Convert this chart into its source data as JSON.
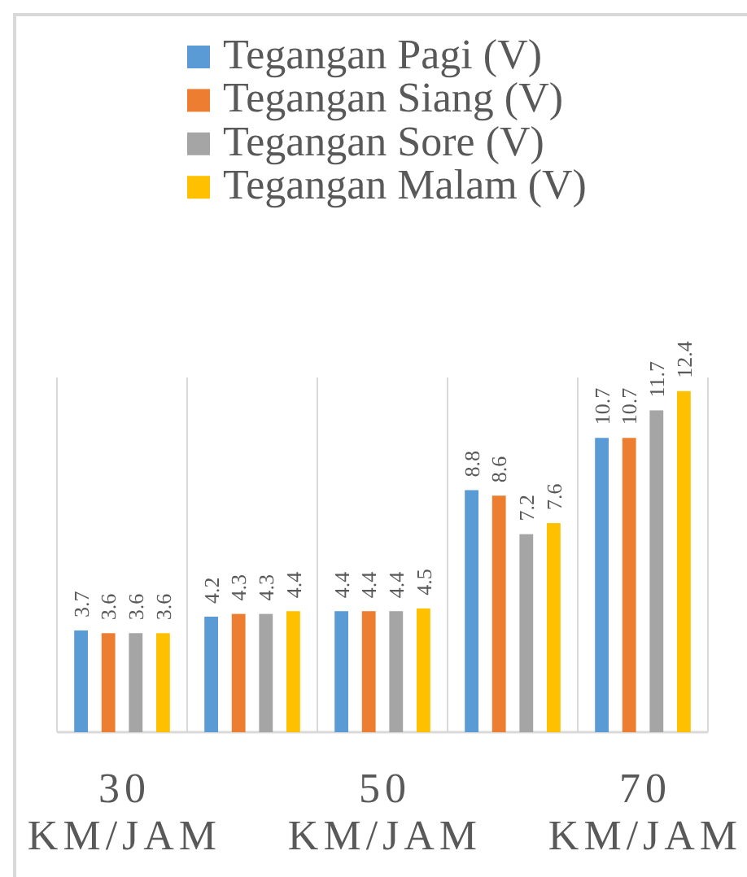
{
  "chart_data": {
    "type": "bar",
    "categories": [
      "30 KM/JAM",
      null,
      "50 KM/JAM",
      null,
      "70 KM/JAM"
    ],
    "series": [
      {
        "name": "Tegangan Pagi (V)",
        "color": "#5b9bd5",
        "values": [
          3.7,
          4.2,
          4.4,
          8.8,
          10.7
        ]
      },
      {
        "name": "Tegangan Siang (V)",
        "color": "#ed7d31",
        "values": [
          3.6,
          4.3,
          4.4,
          8.6,
          10.7
        ]
      },
      {
        "name": "Tegangan Sore (V)",
        "color": "#a5a5a5",
        "values": [
          3.6,
          4.3,
          4.4,
          7.2,
          11.7
        ]
      },
      {
        "name": "Tegangan Malam (V)",
        "color": "#ffc000",
        "values": [
          3.6,
          4.4,
          4.5,
          7.6,
          12.4
        ]
      }
    ],
    "data_labels": true,
    "legend": "top",
    "grid": "x"
  }
}
